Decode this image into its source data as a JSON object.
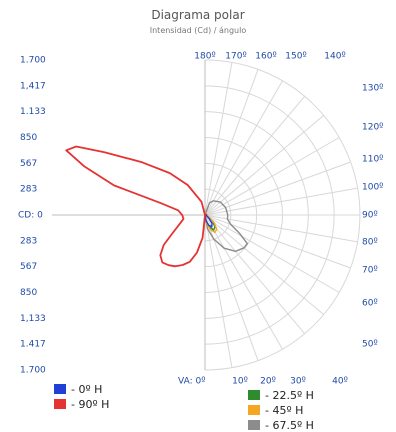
{
  "chart_data": {
    "type": "polar",
    "title": "Diagrama polar",
    "subtitle": "Intensidad (Cd) / ángulo",
    "cd_label": "CD: 0",
    "va_label": "VA: 0º",
    "radial_ticks_upper": [
      "1.700",
      "1,417",
      "1.133",
      "850",
      "567",
      "283"
    ],
    "radial_ticks_lower": [
      "283",
      "567",
      "850",
      "1,133",
      "1.417",
      "1.700"
    ],
    "top_angle_labels": [
      "180º",
      "170º",
      "160º",
      "150º",
      "140º"
    ],
    "right_angle_labels": [
      "130º",
      "120º",
      "110º",
      "100º",
      "90º",
      "80º",
      "70º",
      "60º",
      "50º"
    ],
    "bottom_angle_labels": [
      "10º",
      "20º",
      "30º",
      "40º"
    ],
    "rmax": 1700,
    "series": [
      {
        "name": "- 0º H",
        "color": "#1f3fd6",
        "points": [
          [
            0,
            0
          ],
          [
            10,
            60
          ],
          [
            20,
            120
          ],
          [
            30,
            150
          ],
          [
            40,
            120
          ],
          [
            50,
            60
          ],
          [
            60,
            20
          ],
          [
            90,
            15
          ],
          [
            180,
            10
          ]
        ]
      },
      {
        "name": "- 90º H",
        "color": "#e53333",
        "points": [
          [
            0,
            0
          ],
          [
            6,
            250
          ],
          [
            12,
            420
          ],
          [
            18,
            540
          ],
          [
            24,
            600
          ],
          [
            30,
            650
          ],
          [
            36,
            680
          ],
          [
            42,
            700
          ],
          [
            48,
            660
          ],
          [
            54,
            560
          ],
          [
            60,
            420
          ],
          [
            70,
            300
          ],
          [
            80,
            240
          ],
          [
            90,
            250
          ],
          [
            100,
            300
          ],
          [
            105,
            500
          ],
          [
            108,
            1050
          ],
          [
            112,
            1430
          ],
          [
            115,
            1680
          ],
          [
            118,
            1600
          ],
          [
            122,
            1300
          ],
          [
            130,
            900
          ],
          [
            140,
            600
          ],
          [
            150,
            380
          ],
          [
            165,
            150
          ],
          [
            180,
            0
          ]
        ]
      },
      {
        "name": "- 22.5º H",
        "color": "#2e8b2e",
        "points": [
          [
            0,
            0
          ],
          [
            10,
            80
          ],
          [
            20,
            140
          ],
          [
            30,
            190
          ],
          [
            40,
            170
          ],
          [
            50,
            110
          ],
          [
            60,
            40
          ],
          [
            90,
            20
          ],
          [
            150,
            20
          ],
          [
            180,
            0
          ]
        ]
      },
      {
        "name": "- 45º H",
        "color": "#f5a623",
        "points": [
          [
            0,
            0
          ],
          [
            10,
            90
          ],
          [
            20,
            170
          ],
          [
            30,
            220
          ],
          [
            40,
            200
          ],
          [
            50,
            130
          ],
          [
            60,
            50
          ],
          [
            90,
            25
          ],
          [
            150,
            25
          ],
          [
            180,
            0
          ]
        ]
      },
      {
        "name": "- 67.5º H",
        "color": "#8c8c8c",
        "points": [
          [
            0,
            0
          ],
          [
            10,
            150
          ],
          [
            20,
            280
          ],
          [
            30,
            420
          ],
          [
            40,
            520
          ],
          [
            50,
            560
          ],
          [
            56,
            560
          ],
          [
            62,
            430
          ],
          [
            70,
            300
          ],
          [
            80,
            250
          ],
          [
            90,
            250
          ],
          [
            110,
            240
          ],
          [
            130,
            220
          ],
          [
            150,
            180
          ],
          [
            160,
            140
          ],
          [
            180,
            0
          ]
        ]
      }
    ]
  }
}
